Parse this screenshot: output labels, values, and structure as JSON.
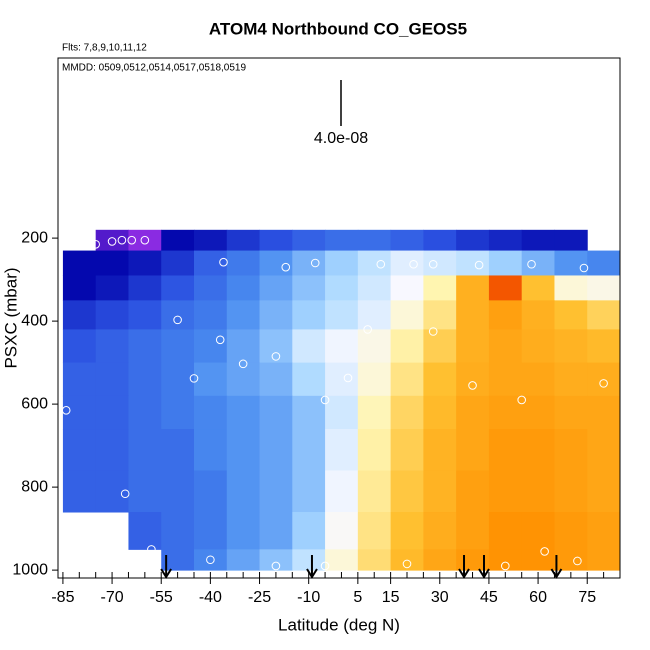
{
  "chart_data": {
    "type": "heatmap",
    "title": "ATOM4 Northbound CO_GEOS5",
    "subtitle": "Flts: 7,8,9,10,11,12",
    "annotation": "MMDD: 0509,0512,0514,0517,0518,0519",
    "scale_label": "4.0e-08",
    "x_label": "Latitude (deg N)",
    "y_label": "PSXC (mbar)",
    "xlim": [
      -86.5,
      85
    ],
    "ylim": [
      1019,
      -234
    ],
    "xticks": [
      -85,
      -70,
      -55,
      -40,
      -25,
      -10,
      5,
      15,
      30,
      45,
      60,
      75
    ],
    "xminor_ticks": [
      -85,
      -80,
      -75,
      -70,
      -65,
      -60,
      -55,
      -50,
      -45,
      -40,
      -35,
      -30,
      -25,
      -20,
      -15,
      -10,
      -5,
      0,
      5,
      10,
      15,
      20,
      25,
      30,
      35,
      40,
      45,
      50,
      55,
      60,
      65,
      70,
      75,
      80
    ],
    "yticks": [
      200,
      400,
      600,
      800,
      1000
    ],
    "lat_edges": [
      -85,
      -75,
      -65,
      -55,
      -45,
      -35,
      -25,
      -15,
      -5,
      5,
      15,
      25,
      35,
      45,
      55,
      65,
      75,
      85
    ],
    "pressure_edges": [
      180,
      230,
      290,
      350,
      420,
      500,
      580,
      660,
      760,
      860,
      950,
      1000
    ],
    "values": [
      [
        null,
        5.2e-08,
        5e-08,
        5.6e-08,
        5.8e-08,
        6.2e-08,
        6.5e-08,
        6.8e-08,
        7e-08,
        7e-08,
        6.8e-08,
        6.5e-08,
        6.2e-08,
        6e-08,
        5.8e-08,
        5.8e-08,
        null
      ],
      [
        5.6e-08,
        5.6e-08,
        5.8e-08,
        6.2e-08,
        6.8e-08,
        7.2e-08,
        7.6e-08,
        8e-08,
        8.4e-08,
        8.8e-08,
        9.2e-08,
        9e-08,
        8.8e-08,
        8.4e-08,
        8e-08,
        7.6e-08,
        7.4e-08
      ],
      [
        5.6e-08,
        5.8e-08,
        6.2e-08,
        6.6e-08,
        7e-08,
        7.4e-08,
        7.8e-08,
        8.2e-08,
        8.6e-08,
        9e-08,
        9.5e-08,
        1.05e-07,
        1.25e-07,
        1.45e-07,
        1.2e-07,
        1e-07,
        9.8e-08
      ],
      [
        6.2e-08,
        6.4e-08,
        6.6e-08,
        7e-08,
        7.2e-08,
        7.6e-08,
        8e-08,
        8.4e-08,
        8.8e-08,
        9.2e-08,
        1e-07,
        1.1e-07,
        1.25e-07,
        1.3e-07,
        1.25e-07,
        1.2e-07,
        1.15e-07
      ],
      [
        6.6e-08,
        6.8e-08,
        7e-08,
        7.2e-08,
        7.4e-08,
        7.8e-08,
        8.2e-08,
        9e-08,
        9.4e-08,
        9.8e-08,
        1.06e-07,
        1.16e-07,
        1.25e-07,
        1.28e-07,
        1.26e-07,
        1.24e-07,
        1.22e-07
      ],
      [
        6.8e-08,
        6.8e-08,
        7e-08,
        7.2e-08,
        7.6e-08,
        7.8e-08,
        8e-08,
        8.6e-08,
        9.2e-08,
        1e-07,
        1.1e-07,
        1.2e-07,
        1.26e-07,
        1.28e-07,
        1.28e-07,
        1.26e-07,
        1.26e-07
      ],
      [
        6.8e-08,
        6.8e-08,
        7e-08,
        7.2e-08,
        7.4e-08,
        7.6e-08,
        7.8e-08,
        8.2e-08,
        9e-08,
        1.04e-07,
        1.14e-07,
        1.22e-07,
        1.28e-07,
        1.3e-07,
        1.3e-07,
        1.28e-07,
        1.28e-07
      ],
      [
        6.8e-08,
        6.8e-08,
        7e-08,
        7e-08,
        7.4e-08,
        7.6e-08,
        7.8e-08,
        8.2e-08,
        9.2e-08,
        1.06e-07,
        1.16e-07,
        1.24e-07,
        1.28e-07,
        1.32e-07,
        1.32e-07,
        1.3e-07,
        1.28e-07
      ],
      [
        6.8e-08,
        6.8e-08,
        7e-08,
        7e-08,
        7.2e-08,
        7.6e-08,
        7.8e-08,
        8.2e-08,
        9.4e-08,
        1.08e-07,
        1.18e-07,
        1.24e-07,
        1.3e-07,
        1.32e-07,
        1.32e-07,
        1.3e-07,
        1.28e-07
      ],
      [
        null,
        null,
        6.8e-08,
        7e-08,
        7.2e-08,
        7.6e-08,
        7.8e-08,
        8.4e-08,
        9.6e-08,
        1.1e-07,
        1.2e-07,
        1.26e-07,
        1.3e-07,
        1.34e-07,
        1.34e-07,
        1.32e-07,
        1.3e-07
      ],
      [
        null,
        null,
        null,
        7e-08,
        7.4e-08,
        7.8e-08,
        8.2e-08,
        8.8e-08,
        1e-07,
        1.12e-07,
        1.22e-07,
        1.28e-07,
        1.32e-07,
        1.34e-07,
        1.34e-07,
        1.32e-07,
        1.3e-07
      ]
    ],
    "color_stops": [
      {
        "value": 5e-08,
        "color": "#8a2be2"
      },
      {
        "value": 5.5e-08,
        "color": "#0000a8"
      },
      {
        "value": 6.5e-08,
        "color": "#2a4fe0"
      },
      {
        "value": 7.5e-08,
        "color": "#4a8cf0"
      },
      {
        "value": 8.5e-08,
        "color": "#a8d8ff"
      },
      {
        "value": 9.5e-08,
        "color": "#f8f8ff"
      },
      {
        "value": 1.05e-07,
        "color": "#fff5b0"
      },
      {
        "value": 1.2e-07,
        "color": "#ffc030"
      },
      {
        "value": 1.35e-07,
        "color": "#ff9000"
      },
      {
        "value": 1.6e-07,
        "color": "#e00000"
      }
    ],
    "observations": {
      "lat": [
        -77,
        -75,
        -70,
        -67,
        -64,
        -60,
        -36,
        -17,
        -8,
        12,
        22,
        28,
        42,
        58,
        74,
        -50,
        -37,
        -20,
        8,
        28,
        -45,
        -30,
        -5,
        2,
        40,
        55,
        80,
        -84,
        -66,
        -58,
        -40,
        -20,
        -5,
        20,
        50,
        62,
        72
      ],
      "pressure": [
        205,
        215,
        208,
        205,
        205,
        205,
        258,
        270,
        260,
        263,
        263,
        263,
        265,
        263,
        272,
        397,
        445,
        485,
        420,
        425,
        538,
        503,
        590,
        537,
        555,
        590,
        550,
        615,
        816,
        950,
        975,
        990,
        990,
        985,
        990,
        955,
        978
      ]
    },
    "flight_lats": [
      -53.5,
      -9,
      37.4,
      43.5,
      65.6
    ]
  }
}
